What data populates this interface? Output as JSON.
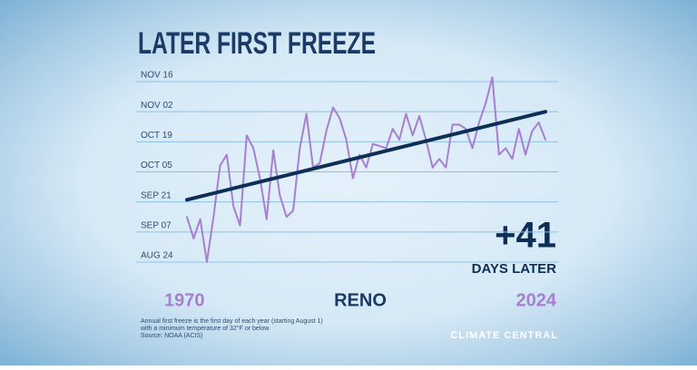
{
  "chart_data": {
    "type": "line",
    "title": "LATER FIRST FREEZE",
    "location": "RENO",
    "annotation": {
      "value": "+41",
      "label": "DAYS LATER"
    },
    "notes": [
      "Annual first freeze is the first day of each year (starting August 1)",
      "with a minimum temperature of 32°F or below.",
      "Source: NOAA (ACIS)"
    ],
    "brand": "CLIMATE CENTRAL",
    "x": [
      1970,
      1971,
      1972,
      1973,
      1974,
      1975,
      1976,
      1977,
      1978,
      1979,
      1980,
      1981,
      1982,
      1983,
      1984,
      1985,
      1986,
      1987,
      1988,
      1989,
      1990,
      1991,
      1992,
      1993,
      1994,
      1995,
      1996,
      1997,
      1998,
      1999,
      2000,
      2001,
      2002,
      2003,
      2004,
      2005,
      2006,
      2007,
      2008,
      2009,
      2010,
      2011,
      2012,
      2013,
      2014,
      2015,
      2016,
      2017,
      2018,
      2019,
      2020,
      2021,
      2022,
      2023,
      2024
    ],
    "series": [
      {
        "color": "#a77fd0",
        "values": [
          44,
          34,
          43,
          23,
          44,
          68,
          73,
          49,
          40,
          82,
          76,
          62,
          43,
          75,
          54,
          44,
          47,
          76,
          92,
          67,
          69,
          84,
          95,
          90,
          80,
          62,
          73,
          67,
          78,
          77,
          76,
          85,
          80,
          92,
          82,
          91,
          80,
          67,
          71,
          67,
          87,
          87,
          85,
          76,
          88,
          97,
          109,
          73,
          76,
          71,
          85,
          73,
          84,
          88,
          80
        ]
      }
    ],
    "trend": {
      "color": "#0d2f57",
      "x": [
        1970,
        2024
      ],
      "values": [
        52,
        93
      ]
    },
    "xlim": [
      1970,
      2024
    ],
    "xticks": [
      1970,
      2024
    ],
    "ylim": [
      23,
      107
    ],
    "yticks": [
      {
        "value": 23,
        "label": "AUG 24"
      },
      {
        "value": 37,
        "label": "SEP 07"
      },
      {
        "value": 51,
        "label": "SEP 21"
      },
      {
        "value": 65,
        "label": "OCT 05"
      },
      {
        "value": 79,
        "label": "OCT 19"
      },
      {
        "value": 93,
        "label": "NOV 02"
      },
      {
        "value": 107,
        "label": "NOV 16"
      }
    ],
    "grid": true
  }
}
